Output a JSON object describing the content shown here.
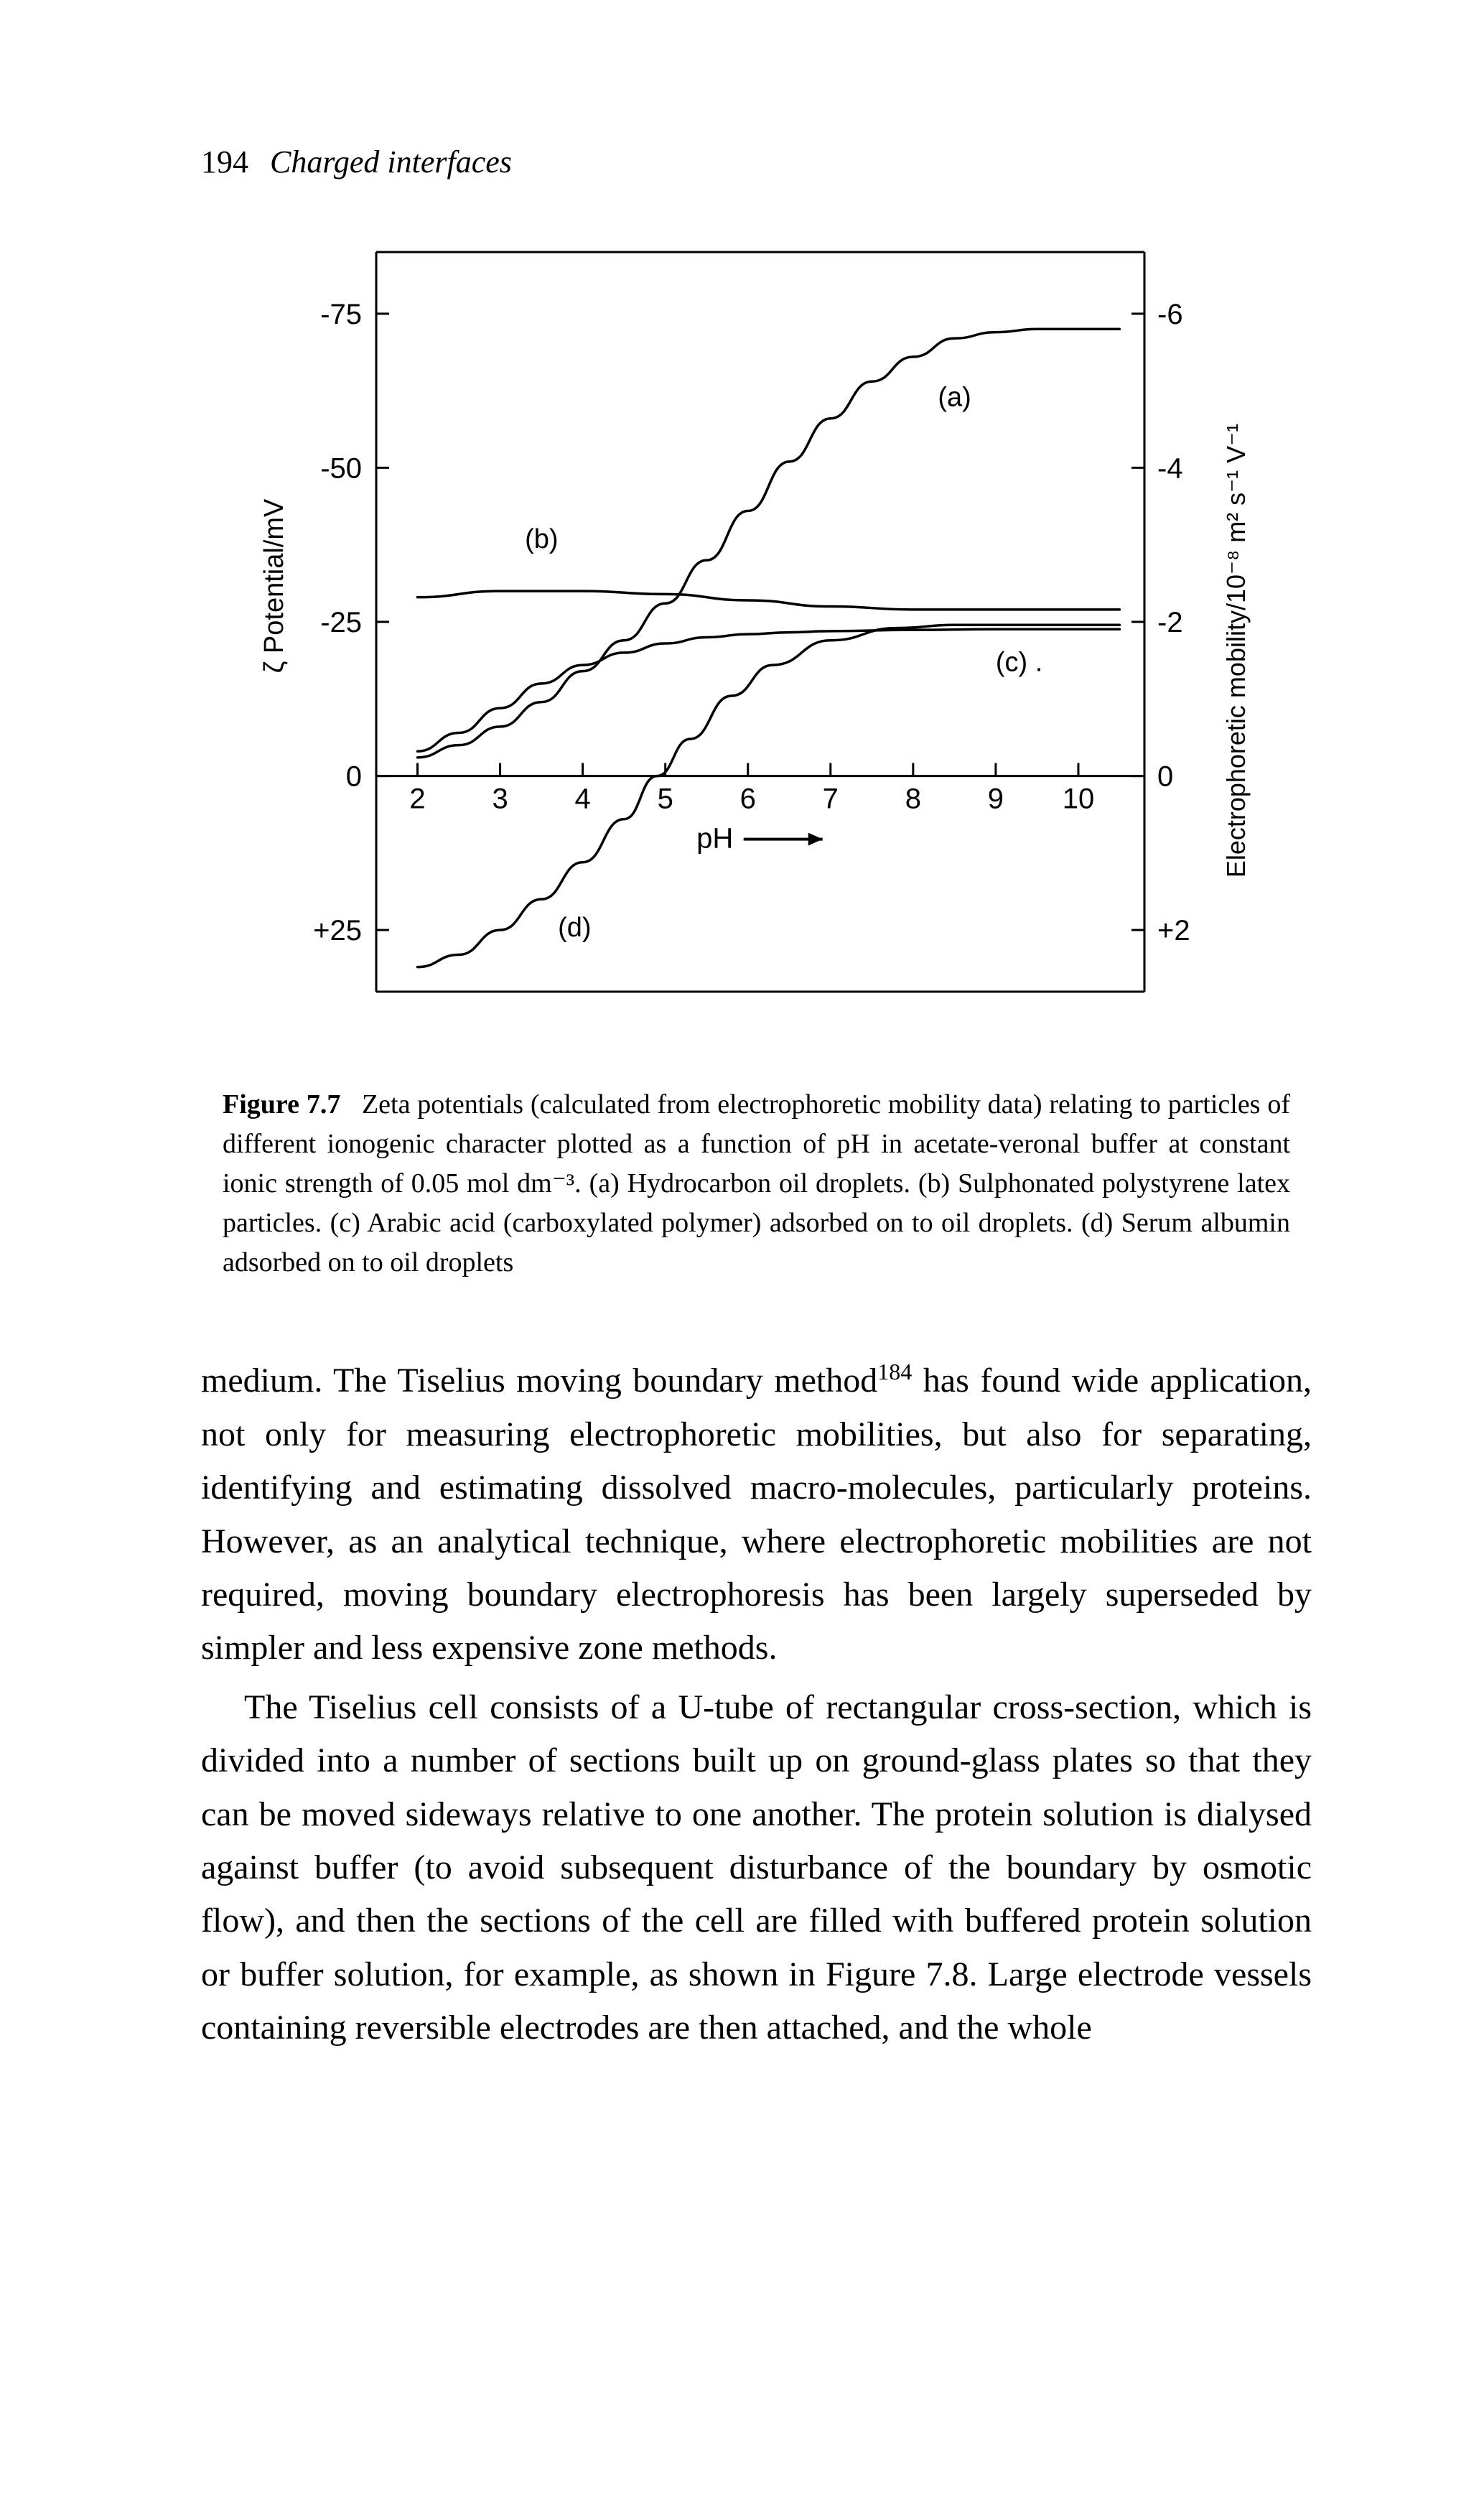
{
  "header": {
    "page_number": "194",
    "chapter": "Charged interfaces"
  },
  "chart": {
    "type": "line",
    "background_color": "#ffffff",
    "axis_color": "#000000",
    "line_width": 3.5,
    "axis_line_width": 3,
    "font_family": "Arial",
    "left_axis": {
      "label": "ζ Potential/mV",
      "ticks": [
        "-75",
        "-50",
        "-25",
        "0",
        "+25"
      ],
      "tick_values": [
        -75,
        -50,
        -25,
        0,
        25
      ],
      "range": [
        -85,
        35
      ]
    },
    "right_axis": {
      "label": "Electrophoretic mobility/10⁻⁸ m² s⁻¹ V⁻¹",
      "ticks": [
        "-6",
        "-4",
        "-2",
        "0",
        "+2"
      ],
      "tick_values": [
        -6,
        -4,
        -2,
        0,
        2
      ],
      "range": [
        -6.8,
        2.8
      ]
    },
    "x_axis": {
      "label": "pH",
      "ticks": [
        "2",
        "3",
        "4",
        "5",
        "6",
        "7",
        "8",
        "9",
        "10"
      ],
      "tick_values": [
        2,
        3,
        4,
        5,
        6,
        7,
        8,
        9,
        10
      ],
      "range": [
        1.5,
        10.8
      ]
    },
    "curves": {
      "a": {
        "label": "(a)",
        "label_pos": {
          "x": 8.3,
          "y": -60
        },
        "data": [
          {
            "x": 2.0,
            "y": -3
          },
          {
            "x": 2.5,
            "y": -5
          },
          {
            "x": 3.0,
            "y": -8
          },
          {
            "x": 3.5,
            "y": -12
          },
          {
            "x": 4.0,
            "y": -17
          },
          {
            "x": 4.5,
            "y": -22
          },
          {
            "x": 5.0,
            "y": -28
          },
          {
            "x": 5.5,
            "y": -35
          },
          {
            "x": 6.0,
            "y": -43
          },
          {
            "x": 6.5,
            "y": -51
          },
          {
            "x": 7.0,
            "y": -58
          },
          {
            "x": 7.5,
            "y": -64
          },
          {
            "x": 8.0,
            "y": -68
          },
          {
            "x": 8.5,
            "y": -71
          },
          {
            "x": 9.0,
            "y": -72
          },
          {
            "x": 9.5,
            "y": -72.5
          },
          {
            "x": 10.0,
            "y": -72.5
          },
          {
            "x": 10.5,
            "y": -72.5
          }
        ]
      },
      "b": {
        "label": "(b)",
        "label_pos": {
          "x": 3.3,
          "y": -37
        },
        "data": [
          {
            "x": 2.0,
            "y": -29
          },
          {
            "x": 3.0,
            "y": -30
          },
          {
            "x": 4.0,
            "y": -30
          },
          {
            "x": 5.0,
            "y": -29.5
          },
          {
            "x": 6.0,
            "y": -28.5
          },
          {
            "x": 7.0,
            "y": -27.5
          },
          {
            "x": 8.0,
            "y": -27
          },
          {
            "x": 9.0,
            "y": -27
          },
          {
            "x": 10.0,
            "y": -27
          },
          {
            "x": 10.5,
            "y": -27
          }
        ]
      },
      "c": {
        "label": "(c) .",
        "label_pos": {
          "x": 9.0,
          "y": -17
        },
        "data": [
          {
            "x": 2.0,
            "y": -4
          },
          {
            "x": 2.5,
            "y": -7
          },
          {
            "x": 3.0,
            "y": -11
          },
          {
            "x": 3.5,
            "y": -15
          },
          {
            "x": 4.0,
            "y": -18
          },
          {
            "x": 4.5,
            "y": -20
          },
          {
            "x": 5.0,
            "y": -21.5
          },
          {
            "x": 5.5,
            "y": -22.5
          },
          {
            "x": 6.0,
            "y": -23
          },
          {
            "x": 6.5,
            "y": -23.3
          },
          {
            "x": 7.0,
            "y": -23.5
          },
          {
            "x": 8.0,
            "y": -23.7
          },
          {
            "x": 9.0,
            "y": -23.8
          },
          {
            "x": 10.0,
            "y": -23.8
          },
          {
            "x": 10.5,
            "y": -23.8
          }
        ]
      },
      "d": {
        "label": "(d)",
        "label_pos": {
          "x": 3.7,
          "y": 26
        },
        "data": [
          {
            "x": 2.0,
            "y": 31
          },
          {
            "x": 2.5,
            "y": 29
          },
          {
            "x": 3.0,
            "y": 25
          },
          {
            "x": 3.5,
            "y": 20
          },
          {
            "x": 4.0,
            "y": 14
          },
          {
            "x": 4.5,
            "y": 7
          },
          {
            "x": 4.9,
            "y": 0
          },
          {
            "x": 5.3,
            "y": -6
          },
          {
            "x": 5.8,
            "y": -13
          },
          {
            "x": 6.3,
            "y": -18
          },
          {
            "x": 7.0,
            "y": -22
          },
          {
            "x": 7.8,
            "y": -24
          },
          {
            "x": 8.5,
            "y": -24.5
          },
          {
            "x": 9.0,
            "y": -24.5
          },
          {
            "x": 10.0,
            "y": -24.5
          },
          {
            "x": 10.5,
            "y": -24.5
          }
        ]
      }
    }
  },
  "caption": {
    "label": "Figure 7.7",
    "text": "Zeta potentials (calculated from electrophoretic mobility data) relating to particles of different ionogenic character plotted as a function of pH in acetate-veronal buffer at constant ionic strength of 0.05 mol dm⁻³. (a) Hydrocarbon oil droplets. (b) Sulphonated polystyrene latex particles. (c) Arabic acid (carboxylated polymer) adsorbed on to oil droplets. (d) Serum albumin adsorbed on to oil droplets"
  },
  "body": {
    "p1_part1": "medium. The Tiselius moving boundary method",
    "p1_sup": "184",
    "p1_part2": " has found wide application, not only for measuring electrophoretic mobilities, but also for separating, identifying and estimating dissolved macro-molecules, particularly proteins. However, as an analytical technique, where electrophoretic mobilities are not required, moving boundary electrophoresis has been largely superseded by simpler and less expensive zone methods.",
    "p2": "The Tiselius cell consists of a U-tube of rectangular cross-section, which is divided into a number of sections built up on ground-glass plates so that they can be moved sideways relative to one another. The protein solution is dialysed against buffer (to avoid subsequent disturbance of the boundary by osmotic flow), and then the sections of the cell are filled with buffered protein solution or buffer solution, for example, as shown in Figure 7.8. Large electrode vessels containing reversible electrodes are then attached, and the whole"
  }
}
